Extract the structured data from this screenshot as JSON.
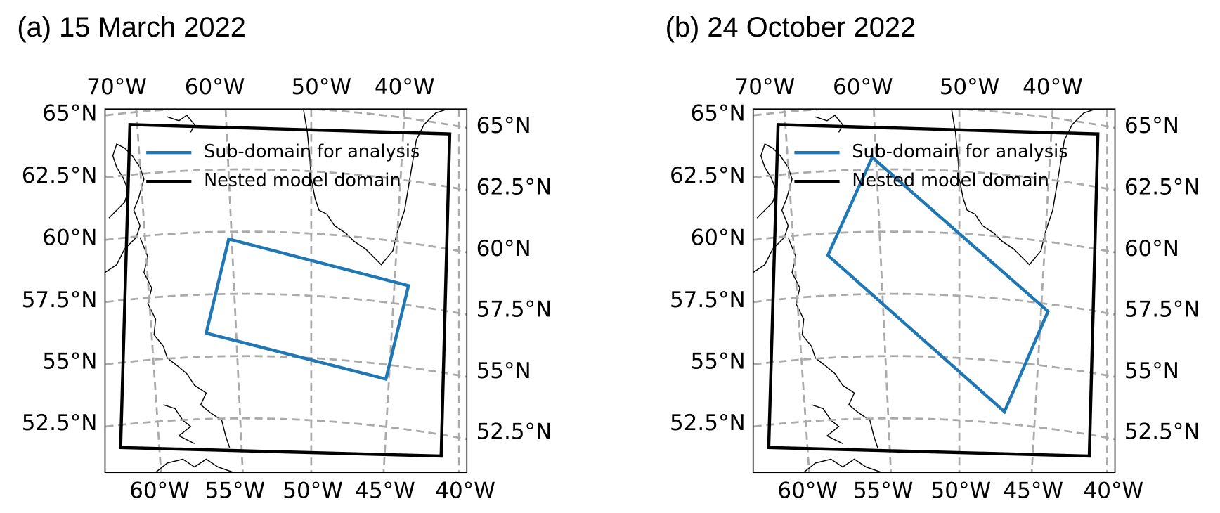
{
  "panels": [
    {
      "title": "(a) 15 March 2022",
      "legend": [
        "Sub-domain for analysis",
        "Nested model domain"
      ],
      "top_labels": [
        "70°W",
        "60°W",
        "50°W",
        "40°W"
      ],
      "bottom_labels": [
        "60°W",
        "55°W",
        "50°W",
        "45°W",
        "40°W"
      ],
      "left_labels": [
        "65°N",
        "62.5°N",
        "60°N",
        "57.5°N",
        "55°N",
        "52.5°N"
      ],
      "right_labels": [
        "65°N",
        "62.5°N",
        "60°N",
        "57.5°N",
        "55°N",
        "52.5°N"
      ]
    },
    {
      "title": "(b) 24 October 2022",
      "legend": [
        "Sub-domain for analysis",
        "Nested model domain"
      ],
      "top_labels": [
        "70°W",
        "60°W",
        "50°W",
        "40°W"
      ],
      "bottom_labels": [
        "60°W",
        "55°W",
        "50°W",
        "45°W",
        "40°W"
      ],
      "left_labels": [
        "65°N",
        "62.5°N",
        "60°N",
        "57.5°N",
        "55°N",
        "52.5°N"
      ],
      "right_labels": [
        "65°N",
        "62.5°N",
        "60°N",
        "57.5°N",
        "55°N",
        "52.5°N"
      ]
    }
  ]
}
